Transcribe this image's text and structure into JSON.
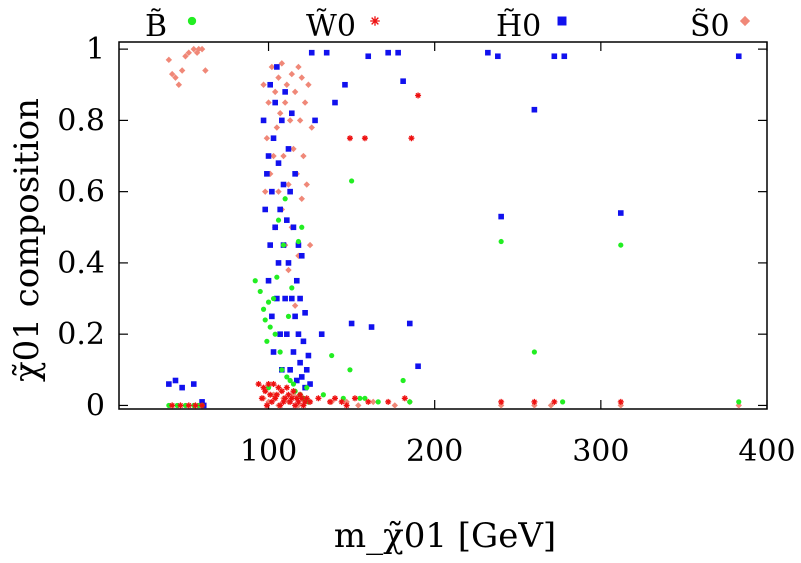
{
  "chart_data": {
    "type": "scatter",
    "title": "",
    "xlabel": "m_χ̃01 [GeV]",
    "ylabel": "χ̃01 composition",
    "xlim": [
      10,
      400
    ],
    "ylim": [
      -0.01,
      1.02
    ],
    "x_ticks": [
      100,
      200,
      300,
      400
    ],
    "x_tick_labels": [
      "100",
      "200",
      "300",
      "400"
    ],
    "y_ticks": [
      0,
      0.2,
      0.4,
      0.6,
      0.8,
      1
    ],
    "y_tick_labels": [
      "0",
      "0.2",
      "0.4",
      "0.6",
      "0.8",
      "1"
    ],
    "legend_position": "top, outside plot",
    "series": [
      {
        "name": "B̃",
        "color": "#22ee22",
        "marker": "circle",
        "points": [
          [
            40,
            0.0
          ],
          [
            45,
            0.0
          ],
          [
            50,
            0.0
          ],
          [
            55,
            0.0
          ],
          [
            58,
            0.0
          ],
          [
            60,
            0.0
          ],
          [
            92,
            0.35
          ],
          [
            95,
            0.32
          ],
          [
            97,
            0.27
          ],
          [
            98,
            0.24
          ],
          [
            99,
            0.18
          ],
          [
            100,
            0.05
          ],
          [
            100,
            0.29
          ],
          [
            101,
            0.22
          ],
          [
            103,
            0.3
          ],
          [
            104,
            0.2
          ],
          [
            105,
            0.36
          ],
          [
            106,
            0.52
          ],
          [
            107,
            0.15
          ],
          [
            108,
            0.1
          ],
          [
            109,
            0.45
          ],
          [
            110,
            0.58
          ],
          [
            111,
            0.08
          ],
          [
            112,
            0.25
          ],
          [
            113,
            0.07
          ],
          [
            114,
            0.33
          ],
          [
            115,
            0.06
          ],
          [
            116,
            0.04
          ],
          [
            118,
            0.46
          ],
          [
            119,
            0.03
          ],
          [
            120,
            0.5
          ],
          [
            121,
            0.02
          ],
          [
            123,
            0.05
          ],
          [
            124,
            0.01
          ],
          [
            133,
            0.03
          ],
          [
            138,
            0.14
          ],
          [
            145,
            0.02
          ],
          [
            149,
            0.1
          ],
          [
            150,
            0.63
          ],
          [
            155,
            0.02
          ],
          [
            158,
            0.02
          ],
          [
            166,
            0.01
          ],
          [
            181,
            0.07
          ],
          [
            185,
            0.01
          ],
          [
            240,
            0.46
          ],
          [
            260,
            0.15
          ],
          [
            277,
            0.01
          ],
          [
            312,
            0.45
          ],
          [
            383,
            0.01
          ]
        ]
      },
      {
        "name": "W̃0",
        "color": "#ee1111",
        "marker": "star",
        "points": [
          [
            42,
            0.0
          ],
          [
            47,
            0.0
          ],
          [
            52,
            0.0
          ],
          [
            56,
            0.0
          ],
          [
            60,
            0.0
          ],
          [
            94,
            0.06
          ],
          [
            96,
            0.02
          ],
          [
            97,
            0.05
          ],
          [
            98,
            0.04
          ],
          [
            99,
            0.0
          ],
          [
            100,
            0.06
          ],
          [
            101,
            0.03
          ],
          [
            102,
            0.01
          ],
          [
            103,
            0.06
          ],
          [
            104,
            0.02
          ],
          [
            105,
            0.03
          ],
          [
            106,
            0.05
          ],
          [
            107,
            0.0
          ],
          [
            108,
            0.04
          ],
          [
            109,
            0.01
          ],
          [
            110,
            0.02
          ],
          [
            111,
            0.05
          ],
          [
            112,
            0.03
          ],
          [
            113,
            0.01
          ],
          [
            114,
            0.02
          ],
          [
            115,
            0.04
          ],
          [
            116,
            0.0
          ],
          [
            117,
            0.02
          ],
          [
            118,
            0.01
          ],
          [
            119,
            0.03
          ],
          [
            120,
            0.02
          ],
          [
            121,
            0.0
          ],
          [
            122,
            0.01
          ],
          [
            123,
            0.02
          ],
          [
            125,
            0.01
          ],
          [
            130,
            0.02
          ],
          [
            137,
            0.01
          ],
          [
            140,
            0.02
          ],
          [
            144,
            0.01
          ],
          [
            147,
            0.0
          ],
          [
            149,
            0.75
          ],
          [
            152,
            0.02
          ],
          [
            158,
            0.75
          ],
          [
            160,
            0.01
          ],
          [
            172,
            0.01
          ],
          [
            182,
            0.02
          ],
          [
            186,
            0.75
          ],
          [
            190,
            0.87
          ],
          [
            240,
            0.01
          ],
          [
            260,
            0.01
          ],
          [
            272,
            0.01
          ],
          [
            312,
            0.01
          ]
        ]
      },
      {
        "name": "H̃0",
        "color": "#1111ee",
        "marker": "square",
        "points": [
          [
            40,
            0.06
          ],
          [
            44,
            0.07
          ],
          [
            48,
            0.05
          ],
          [
            55,
            0.06
          ],
          [
            60,
            0.01
          ],
          [
            61,
            0.0
          ],
          [
            97,
            0.8
          ],
          [
            98,
            0.55
          ],
          [
            99,
            0.65
          ],
          [
            100,
            0.35
          ],
          [
            100,
            0.7
          ],
          [
            101,
            0.9
          ],
          [
            101,
            0.45
          ],
          [
            102,
            0.25
          ],
          [
            102,
            0.6
          ],
          [
            103,
            0.75
          ],
          [
            103,
            0.15
          ],
          [
            104,
            0.5
          ],
          [
            104,
            0.85
          ],
          [
            105,
            0.3
          ],
          [
            105,
            0.95
          ],
          [
            106,
            0.4
          ],
          [
            106,
            0.68
          ],
          [
            107,
            0.2
          ],
          [
            107,
            0.55
          ],
          [
            108,
            0.8
          ],
          [
            108,
            0.1
          ],
          [
            109,
            0.45
          ],
          [
            109,
            0.62
          ],
          [
            110,
            0.3
          ],
          [
            110,
            0.88
          ],
          [
            111,
            0.2
          ],
          [
            111,
            0.52
          ],
          [
            112,
            0.72
          ],
          [
            112,
            0.4
          ],
          [
            113,
            0.1
          ],
          [
            113,
            0.6
          ],
          [
            114,
            0.3
          ],
          [
            114,
            0.82
          ],
          [
            115,
            0.5
          ],
          [
            115,
            0.15
          ],
          [
            116,
            0.25
          ],
          [
            116,
            0.65
          ],
          [
            117,
            0.35
          ],
          [
            117,
            0.07
          ],
          [
            118,
            0.45
          ],
          [
            118,
            0.2
          ],
          [
            119,
            0.12
          ],
          [
            119,
            0.3
          ],
          [
            120,
            0.08
          ],
          [
            120,
            0.42
          ],
          [
            121,
            0.18
          ],
          [
            122,
            0.05
          ],
          [
            122,
            0.26
          ],
          [
            123,
            0.1
          ],
          [
            124,
            0.14
          ],
          [
            125,
            0.06
          ],
          [
            126,
            0.99
          ],
          [
            128,
            0.8
          ],
          [
            132,
            0.2
          ],
          [
            135,
            0.99
          ],
          [
            140,
            0.85
          ],
          [
            146,
            0.9
          ],
          [
            150,
            0.23
          ],
          [
            160,
            0.98
          ],
          [
            162,
            0.22
          ],
          [
            172,
            0.99
          ],
          [
            178,
            0.99
          ],
          [
            181,
            0.91
          ],
          [
            185,
            0.23
          ],
          [
            190,
            0.11
          ],
          [
            232,
            0.99
          ],
          [
            238,
            0.98
          ],
          [
            240,
            0.53
          ],
          [
            260,
            0.83
          ],
          [
            272,
            0.98
          ],
          [
            278,
            0.98
          ],
          [
            312,
            0.54
          ],
          [
            383,
            0.98
          ]
        ]
      },
      {
        "name": "S̃0",
        "color": "#f08878",
        "marker": "diamond",
        "points": [
          [
            40,
            0.97
          ],
          [
            42,
            0.93
          ],
          [
            44,
            0.92
          ],
          [
            46,
            0.9
          ],
          [
            48,
            0.94
          ],
          [
            50,
            0.98
          ],
          [
            52,
            0.99
          ],
          [
            55,
            1.0
          ],
          [
            57,
            0.99
          ],
          [
            58,
            1.0
          ],
          [
            60,
            1.0
          ],
          [
            62,
            0.94
          ],
          [
            97,
            0.9
          ],
          [
            98,
            0.6
          ],
          [
            99,
            0.75
          ],
          [
            100,
            0.85
          ],
          [
            101,
            0.65
          ],
          [
            102,
            0.95
          ],
          [
            103,
            0.7
          ],
          [
            104,
            0.5
          ],
          [
            104,
            0.88
          ],
          [
            105,
            0.78
          ],
          [
            106,
            0.92
          ],
          [
            106,
            0.6
          ],
          [
            107,
            0.82
          ],
          [
            108,
            0.55
          ],
          [
            108,
            0.96
          ],
          [
            109,
            0.7
          ],
          [
            110,
            0.85
          ],
          [
            110,
            0.45
          ],
          [
            111,
            0.9
          ],
          [
            112,
            0.62
          ],
          [
            112,
            0.38
          ],
          [
            113,
            0.8
          ],
          [
            114,
            0.93
          ],
          [
            114,
            0.5
          ],
          [
            115,
            0.72
          ],
          [
            116,
            0.88
          ],
          [
            116,
            0.28
          ],
          [
            117,
            0.65
          ],
          [
            118,
            0.95
          ],
          [
            118,
            0.42
          ],
          [
            119,
            0.8
          ],
          [
            120,
            0.58
          ],
          [
            120,
            0.92
          ],
          [
            121,
            0.7
          ],
          [
            122,
            0.85
          ],
          [
            123,
            0.62
          ],
          [
            124,
            0.9
          ],
          [
            125,
            0.45
          ],
          [
            126,
            0.78
          ],
          [
            97,
            0.02
          ],
          [
            100,
            0.01
          ],
          [
            103,
            0.03
          ],
          [
            106,
            0.0
          ],
          [
            109,
            0.02
          ],
          [
            112,
            0.01
          ],
          [
            115,
            0.03
          ],
          [
            118,
            0.0
          ],
          [
            121,
            0.02
          ],
          [
            124,
            0.01
          ],
          [
            138,
            0.01
          ],
          [
            147,
            0.01
          ],
          [
            154,
            0.0
          ],
          [
            163,
            0.01
          ],
          [
            176,
            0.0
          ],
          [
            185,
            0.01
          ],
          [
            240,
            0.0
          ],
          [
            260,
            0.0
          ],
          [
            270,
            0.0
          ],
          [
            312,
            0.0
          ],
          [
            383,
            0.0
          ]
        ]
      }
    ]
  }
}
